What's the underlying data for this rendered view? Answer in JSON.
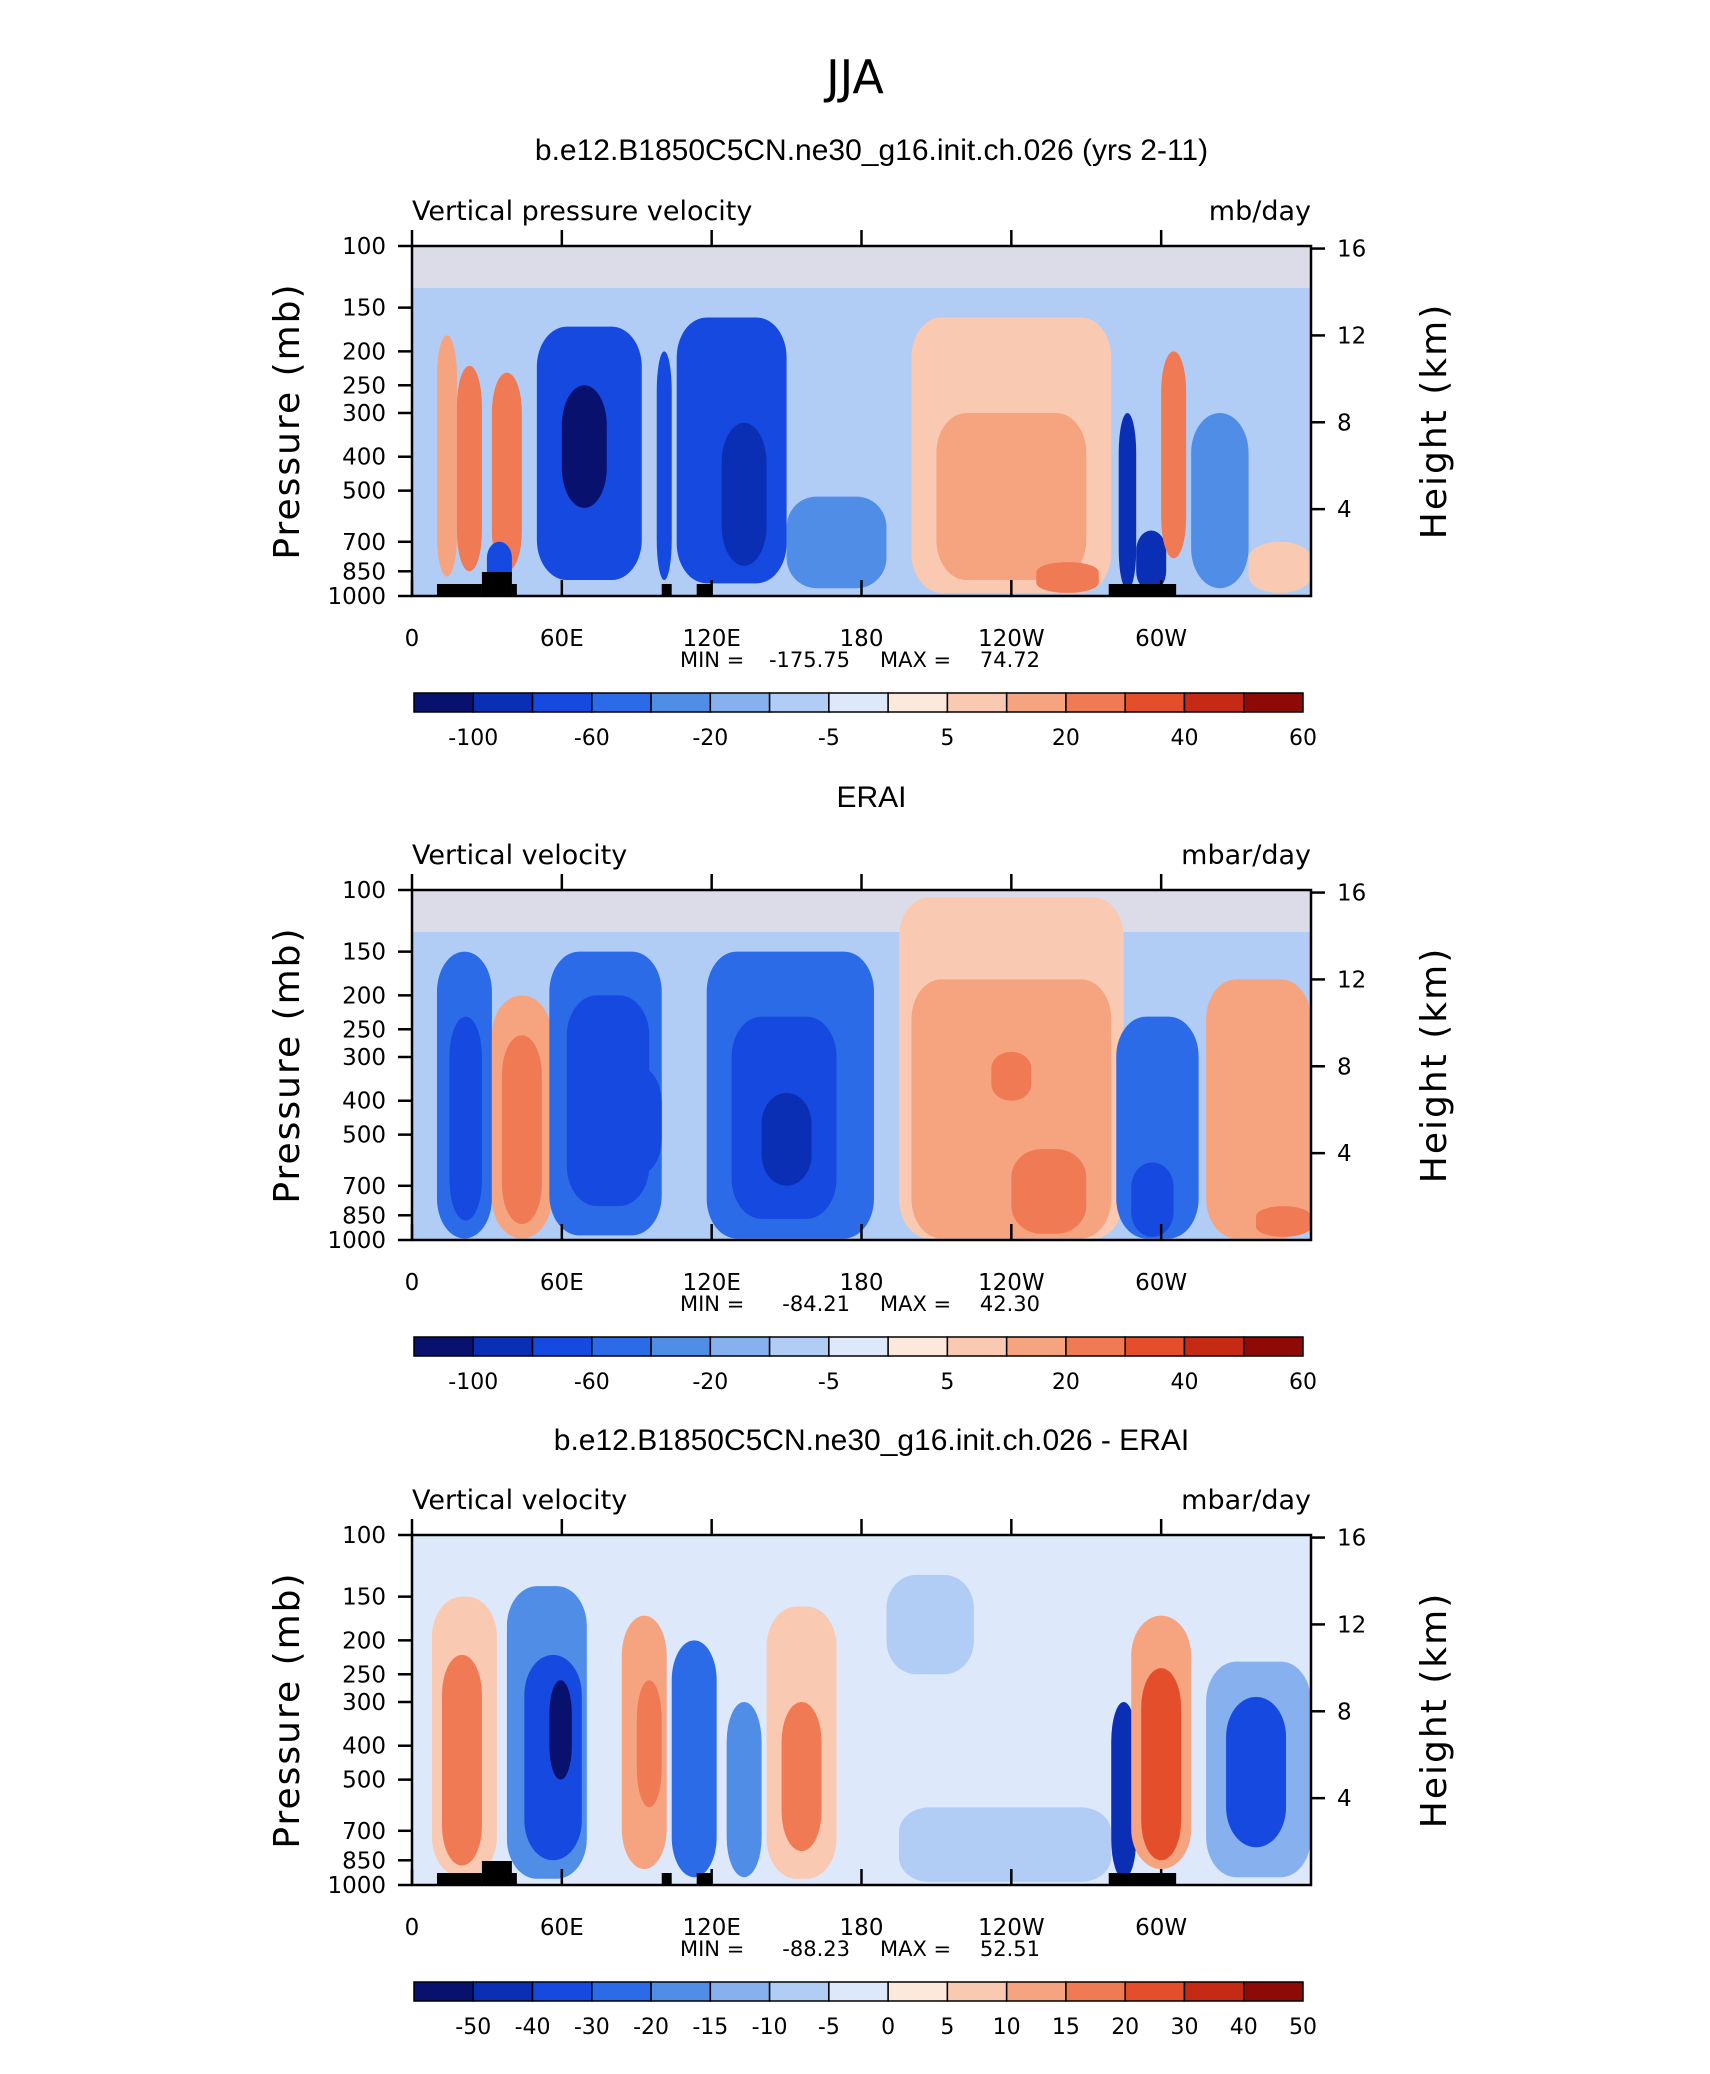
{
  "figure_title": "JJA",
  "chart_data": [
    {
      "type": "heatmap",
      "title": "b.e12.B1850C5CN.ne30_g16.init.ch.026 (yrs 2-11)",
      "variable": "Vertical pressure velocity",
      "units": "mb/day",
      "ylabel": "Pressure (mb)",
      "y2label": "Height (km)",
      "x_ticks": [
        "0",
        "60E",
        "120E",
        "180",
        "120W",
        "60W"
      ],
      "y_ticks": [
        "100",
        "150",
        "200",
        "250",
        "300",
        "400",
        "500",
        "700",
        "850",
        "1000"
      ],
      "y2_ticks": [
        "16",
        "12",
        "8",
        "4"
      ],
      "min_label": "MIN =",
      "min": "-175.75",
      "max_label": "MAX =",
      "max": "74.72",
      "colorbar_labels": [
        "-100",
        "-60",
        "-20",
        "-5",
        "5",
        "20",
        "40",
        "60"
      ],
      "colorbar_levels": [
        -100,
        -80,
        -60,
        -40,
        -20,
        -10,
        -5,
        0,
        5,
        10,
        20,
        30,
        40,
        50,
        60
      ],
      "regions": [
        {
          "lon": [
            10,
            18
          ],
          "p": [
            180,
            880
          ],
          "v": 18
        },
        {
          "lon": [
            18,
            28
          ],
          "p": [
            220,
            850
          ],
          "v": 25
        },
        {
          "lon": [
            32,
            44
          ],
          "p": [
            230,
            850
          ],
          "v": 30
        },
        {
          "lon": [
            30,
            40
          ],
          "p": [
            700,
            960
          ],
          "v": -40
        },
        {
          "lon": [
            50,
            92
          ],
          "p": [
            170,
            900
          ],
          "v": -45
        },
        {
          "lon": [
            60,
            78
          ],
          "p": [
            250,
            560
          ],
          "v": -90
        },
        {
          "lon": [
            98,
            104
          ],
          "p": [
            200,
            900
          ],
          "v": -40
        },
        {
          "lon": [
            106,
            150
          ],
          "p": [
            160,
            920
          ],
          "v": -40
        },
        {
          "lon": [
            124,
            142
          ],
          "p": [
            320,
            820
          ],
          "v": -60
        },
        {
          "lon": [
            150,
            190
          ],
          "p": [
            520,
            950
          ],
          "v": -15
        },
        {
          "lon": [
            200,
            280
          ],
          "p": [
            160,
            980
          ],
          "v": 8
        },
        {
          "lon": [
            210,
            270
          ],
          "p": [
            300,
            900
          ],
          "v": 20
        },
        {
          "lon": [
            250,
            275
          ],
          "p": [
            800,
            980
          ],
          "v": 30
        },
        {
          "lon": [
            283,
            290
          ],
          "p": [
            300,
            960
          ],
          "v": -70
        },
        {
          "lon": [
            290,
            302
          ],
          "p": [
            650,
            970
          ],
          "v": -60
        },
        {
          "lon": [
            300,
            310
          ],
          "p": [
            200,
            780
          ],
          "v": 22
        },
        {
          "lon": [
            312,
            335
          ],
          "p": [
            300,
            950
          ],
          "v": -12
        },
        {
          "lon": [
            335,
            360
          ],
          "p": [
            700,
            980
          ],
          "v": 8
        }
      ]
    },
    {
      "type": "heatmap",
      "title": "ERAI",
      "variable": "Vertical velocity",
      "units": "mbar/day",
      "ylabel": "Pressure (mb)",
      "y2label": "Height (km)",
      "x_ticks": [
        "0",
        "60E",
        "120E",
        "180",
        "120W",
        "60W"
      ],
      "y_ticks": [
        "100",
        "150",
        "200",
        "250",
        "300",
        "400",
        "500",
        "700",
        "850",
        "1000"
      ],
      "y2_ticks": [
        "16",
        "12",
        "8",
        "4"
      ],
      "min_label": "MIN =",
      "min": "-84.21",
      "max_label": "MAX =",
      "max": "42.30",
      "colorbar_labels": [
        "-100",
        "-60",
        "-20",
        "-5",
        "5",
        "20",
        "40",
        "60"
      ],
      "colorbar_levels": [
        -100,
        -80,
        -60,
        -40,
        -20,
        -10,
        -5,
        0,
        5,
        10,
        20,
        30,
        40,
        50,
        60
      ],
      "regions": [
        {
          "lon": [
            10,
            32
          ],
          "p": [
            150,
            990
          ],
          "v": -20
        },
        {
          "lon": [
            15,
            28
          ],
          "p": [
            230,
            880
          ],
          "v": -40
        },
        {
          "lon": [
            32,
            56
          ],
          "p": [
            200,
            990
          ],
          "v": 12
        },
        {
          "lon": [
            36,
            52
          ],
          "p": [
            260,
            900
          ],
          "v": 30
        },
        {
          "lon": [
            55,
            100
          ],
          "p": [
            150,
            970
          ],
          "v": -30
        },
        {
          "lon": [
            62,
            95
          ],
          "p": [
            200,
            800
          ],
          "v": -45
        },
        {
          "lon": [
            82,
            100
          ],
          "p": [
            320,
            650
          ],
          "v": -55
        },
        {
          "lon": [
            118,
            185
          ],
          "p": [
            150,
            990
          ],
          "v": -25
        },
        {
          "lon": [
            128,
            170
          ],
          "p": [
            230,
            870
          ],
          "v": -45
        },
        {
          "lon": [
            140,
            160
          ],
          "p": [
            380,
            700
          ],
          "v": -65
        },
        {
          "lon": [
            195,
            285
          ],
          "p": [
            105,
            990
          ],
          "v": 8
        },
        {
          "lon": [
            200,
            280
          ],
          "p": [
            180,
            990
          ],
          "v": 18
        },
        {
          "lon": [
            232,
            248
          ],
          "p": [
            290,
            400
          ],
          "v": 30
        },
        {
          "lon": [
            240,
            270
          ],
          "p": [
            550,
            960
          ],
          "v": 30
        },
        {
          "lon": [
            282,
            315
          ],
          "p": [
            230,
            990
          ],
          "v": -30
        },
        {
          "lon": [
            288,
            305
          ],
          "p": [
            600,
            980
          ],
          "v": -50
        },
        {
          "lon": [
            318,
            360
          ],
          "p": [
            180,
            990
          ],
          "v": 12
        },
        {
          "lon": [
            325,
            360
          ],
          "p": [
            250,
            800
          ],
          "v": 18
        },
        {
          "lon": [
            338,
            360
          ],
          "p": [
            800,
            980
          ],
          "v": 28
        }
      ]
    },
    {
      "type": "heatmap",
      "title": "b.e12.B1850C5CN.ne30_g16.init.ch.026 - ERAI",
      "variable": "Vertical velocity",
      "units": "mbar/day",
      "ylabel": "Pressure (mb)",
      "y2label": "Height (km)",
      "x_ticks": [
        "0",
        "60E",
        "120E",
        "180",
        "120W",
        "60W"
      ],
      "y_ticks": [
        "100",
        "150",
        "200",
        "250",
        "300",
        "400",
        "500",
        "700",
        "850",
        "1000"
      ],
      "y2_ticks": [
        "16",
        "12",
        "8",
        "4"
      ],
      "min_label": "MIN =",
      "min": "-88.23",
      "max_label": "MAX =",
      "max": "52.51",
      "colorbar_labels": [
        "-50",
        "-40",
        "-30",
        "-20",
        "-15",
        "-10",
        "-5",
        "0",
        "5",
        "10",
        "15",
        "20",
        "30",
        "40",
        "50"
      ],
      "colorbar_levels": [
        -60,
        -50,
        -40,
        -30,
        -20,
        -15,
        -10,
        -5,
        0,
        5,
        10,
        15,
        20,
        30,
        40,
        50,
        60
      ],
      "regions": [
        {
          "lon": [
            8,
            34
          ],
          "p": [
            150,
            950
          ],
          "v": 12
        },
        {
          "lon": [
            12,
            28
          ],
          "p": [
            220,
            880
          ],
          "v": 30
        },
        {
          "lon": [
            38,
            70
          ],
          "p": [
            140,
            960
          ],
          "v": -15
        },
        {
          "lon": [
            45,
            68
          ],
          "p": [
            220,
            850
          ],
          "v": -30
        },
        {
          "lon": [
            55,
            64
          ],
          "p": [
            260,
            500
          ],
          "v": -55
        },
        {
          "lon": [
            84,
            102
          ],
          "p": [
            170,
            900
          ],
          "v": 18
        },
        {
          "lon": [
            90,
            100
          ],
          "p": [
            260,
            600
          ],
          "v": 30
        },
        {
          "lon": [
            104,
            122
          ],
          "p": [
            200,
            950
          ],
          "v": -25
        },
        {
          "lon": [
            126,
            140
          ],
          "p": [
            300,
            950
          ],
          "v": -18
        },
        {
          "lon": [
            142,
            170
          ],
          "p": [
            160,
            960
          ],
          "v": 15
        },
        {
          "lon": [
            148,
            164
          ],
          "p": [
            300,
            800
          ],
          "v": 30
        },
        {
          "lon": [
            190,
            225
          ],
          "p": [
            130,
            250
          ],
          "v": -8
        },
        {
          "lon": [
            195,
            280
          ],
          "p": [
            600,
            980
          ],
          "v": -7
        },
        {
          "lon": [
            280,
            290
          ],
          "p": [
            300,
            960
          ],
          "v": -45
        },
        {
          "lon": [
            288,
            312
          ],
          "p": [
            170,
            900
          ],
          "v": 18
        },
        {
          "lon": [
            292,
            308
          ],
          "p": [
            240,
            850
          ],
          "v": 35
        },
        {
          "lon": [
            318,
            360
          ],
          "p": [
            230,
            950
          ],
          "v": -12
        },
        {
          "lon": [
            326,
            350
          ],
          "p": [
            290,
            780
          ],
          "v": -30
        }
      ]
    }
  ]
}
